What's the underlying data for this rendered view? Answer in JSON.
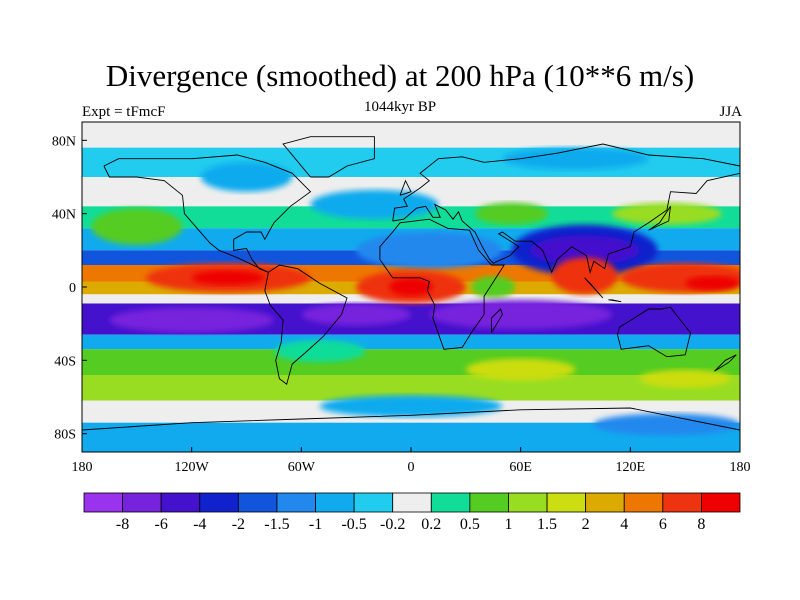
{
  "chart_data": {
    "type": "heatmap",
    "title": "Divergence (smoothed) at 200 hPa (10**6 m/s)",
    "subtitle_left": "Expt = tFmcF",
    "subtitle_center": "1044kyr BP",
    "subtitle_right": "JJA",
    "x_ticks": [
      {
        "value": -180,
        "label": "180"
      },
      {
        "value": -120,
        "label": "120W"
      },
      {
        "value": -60,
        "label": "60W"
      },
      {
        "value": 0,
        "label": "0"
      },
      {
        "value": 60,
        "label": "60E"
      },
      {
        "value": 120,
        "label": "120E"
      },
      {
        "value": 180,
        "label": "180"
      }
    ],
    "y_ticks": [
      {
        "value": 80,
        "label": "80N"
      },
      {
        "value": 40,
        "label": "40N"
      },
      {
        "value": 0,
        "label": "0"
      },
      {
        "value": -40,
        "label": "40S"
      },
      {
        "value": -80,
        "label": "80S"
      }
    ],
    "xlim": [
      -180,
      180
    ],
    "ylim": [
      -90,
      90
    ],
    "colorbar": {
      "colors": [
        "#9933ee",
        "#7722dd",
        "#4411cc",
        "#1122cc",
        "#1155dd",
        "#2288ee",
        "#11aaee",
        "#22ccee",
        "#eeeeee",
        "#11dd99",
        "#55cc22",
        "#99dd22",
        "#ccdd11",
        "#ddaa00",
        "#ee7700",
        "#ee3311",
        "#ee0000"
      ],
      "labels": [
        "-8",
        "-6",
        "-4",
        "-2",
        "-1.5",
        "-1",
        "-0.5",
        "-0.2",
        "0.2",
        "0.5",
        "1",
        "1.5",
        "2",
        "4",
        "6",
        "8"
      ]
    },
    "bands": [
      {
        "lat_top": 90,
        "lat_bottom": 76,
        "level": 8
      },
      {
        "lat_top": 76,
        "lat_bottom": 60,
        "level": 7
      },
      {
        "lat_top": 60,
        "lat_bottom": 44,
        "level": 8
      },
      {
        "lat_top": 44,
        "lat_bottom": 32,
        "level": 9
      },
      {
        "lat_top": 32,
        "lat_bottom": 20,
        "level": 6
      },
      {
        "lat_top": 20,
        "lat_bottom": 12,
        "level": 4
      },
      {
        "lat_top": 12,
        "lat_bottom": 3,
        "level": 14
      },
      {
        "lat_top": 3,
        "lat_bottom": -4,
        "level": 13
      },
      {
        "lat_top": -4,
        "lat_bottom": -9,
        "level": 8
      },
      {
        "lat_top": -9,
        "lat_bottom": -26,
        "level": 2
      },
      {
        "lat_top": -26,
        "lat_bottom": -34,
        "level": 6
      },
      {
        "lat_top": -34,
        "lat_bottom": -48,
        "level": 10
      },
      {
        "lat_top": -48,
        "lat_bottom": -62,
        "level": 11
      },
      {
        "lat_top": -62,
        "lat_bottom": -74,
        "level": 8
      },
      {
        "lat_top": -74,
        "lat_bottom": -90,
        "level": 6
      }
    ],
    "blobs": [
      {
        "lon": 95,
        "lat": 20,
        "rx": 40,
        "ry": 14,
        "level": 3
      },
      {
        "lon": 95,
        "lat": 20,
        "rx": 30,
        "ry": 8,
        "level": 2
      },
      {
        "lon": 10,
        "lat": 20,
        "rx": 40,
        "ry": 10,
        "level": 5
      },
      {
        "lon": -150,
        "lat": 33,
        "rx": 25,
        "ry": 10,
        "level": 10
      },
      {
        "lon": -20,
        "lat": 45,
        "rx": 35,
        "ry": 8,
        "level": 6
      },
      {
        "lon": 55,
        "lat": 40,
        "rx": 20,
        "ry": 6,
        "level": 10
      },
      {
        "lon": 140,
        "lat": 40,
        "rx": 30,
        "ry": 6,
        "level": 11
      },
      {
        "lon": -100,
        "lat": 5,
        "rx": 45,
        "ry": 8,
        "level": 15
      },
      {
        "lon": -100,
        "lat": 5,
        "rx": 20,
        "ry": 4,
        "level": 16
      },
      {
        "lon": 0,
        "lat": 0,
        "rx": 30,
        "ry": 9,
        "level": 15
      },
      {
        "lon": 0,
        "lat": 0,
        "rx": 12,
        "ry": 5,
        "level": 16
      },
      {
        "lon": 95,
        "lat": 6,
        "rx": 18,
        "ry": 10,
        "level": 15
      },
      {
        "lon": 150,
        "lat": 5,
        "rx": 35,
        "ry": 8,
        "level": 15
      },
      {
        "lon": 165,
        "lat": 2,
        "rx": 15,
        "ry": 4,
        "level": 16
      },
      {
        "lon": 45,
        "lat": 0,
        "rx": 12,
        "ry": 6,
        "level": 10
      },
      {
        "lon": -120,
        "lat": -18,
        "rx": 45,
        "ry": 7,
        "level": 1
      },
      {
        "lon": 60,
        "lat": -15,
        "rx": 50,
        "ry": 8,
        "level": 1
      },
      {
        "lon": -30,
        "lat": -15,
        "rx": 30,
        "ry": 6,
        "level": 1
      },
      {
        "lon": 60,
        "lat": -45,
        "rx": 30,
        "ry": 6,
        "level": 12
      },
      {
        "lon": 150,
        "lat": -50,
        "rx": 25,
        "ry": 5,
        "level": 12
      },
      {
        "lon": -50,
        "lat": -35,
        "rx": 25,
        "ry": 6,
        "level": 9
      },
      {
        "lon": 0,
        "lat": -65,
        "rx": 50,
        "ry": 6,
        "level": 6
      },
      {
        "lon": 140,
        "lat": -75,
        "rx": 40,
        "ry": 6,
        "level": 5
      },
      {
        "lon": -90,
        "lat": 60,
        "rx": 25,
        "ry": 8,
        "level": 6
      },
      {
        "lon": 90,
        "lat": 70,
        "rx": 40,
        "ry": 6,
        "level": 6
      }
    ]
  }
}
